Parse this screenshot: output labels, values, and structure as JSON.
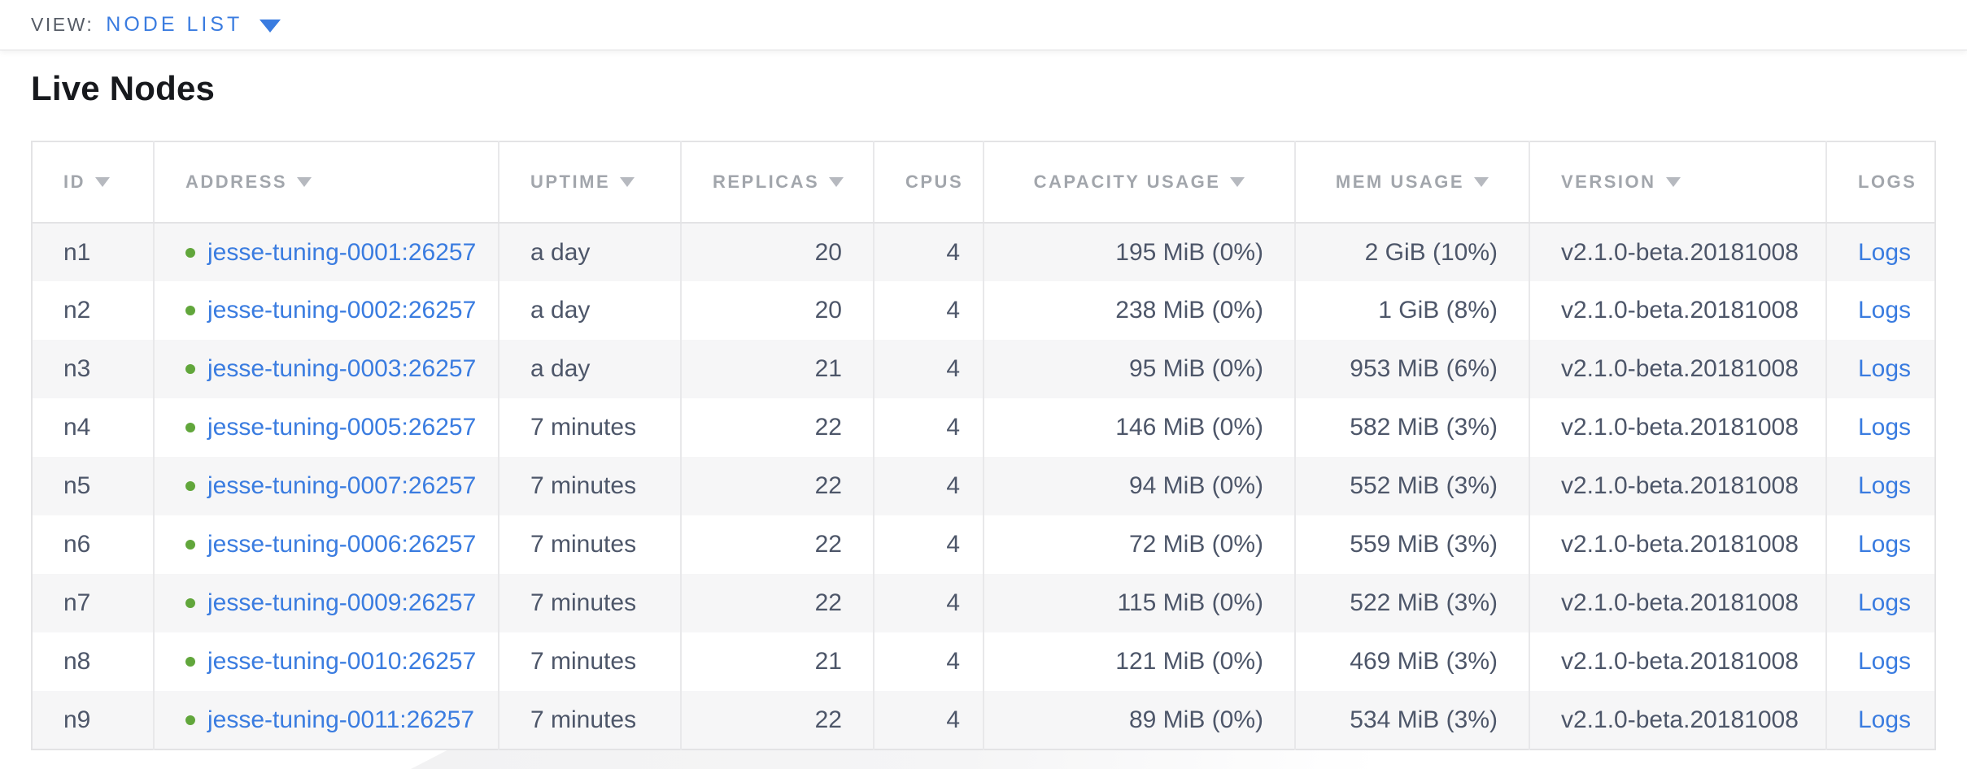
{
  "view_bar": {
    "label": "VIEW:",
    "selected": "NODE LIST"
  },
  "page": {
    "title": "Live Nodes"
  },
  "table": {
    "columns": [
      {
        "field": "id",
        "label": "ID",
        "sortable": true,
        "header_align": "left",
        "cell_align": "left"
      },
      {
        "field": "address",
        "label": "ADDRESS",
        "sortable": true,
        "header_align": "left",
        "cell_align": "left"
      },
      {
        "field": "uptime",
        "label": "UPTIME",
        "sortable": true,
        "header_align": "left",
        "cell_align": "left"
      },
      {
        "field": "replicas",
        "label": "REPLICAS",
        "sortable": true,
        "header_align": "center",
        "cell_align": "right"
      },
      {
        "field": "cpus",
        "label": "CPUS",
        "sortable": false,
        "header_align": "center",
        "cell_align": "right"
      },
      {
        "field": "capacity_usage",
        "label": "CAPACITY USAGE",
        "sortable": true,
        "header_align": "center",
        "cell_align": "right"
      },
      {
        "field": "mem_usage",
        "label": "MEM USAGE",
        "sortable": true,
        "header_align": "center",
        "cell_align": "right"
      },
      {
        "field": "version",
        "label": "VERSION",
        "sortable": true,
        "header_align": "left",
        "cell_align": "left"
      },
      {
        "field": "logs",
        "label": "LOGS",
        "sortable": false,
        "header_align": "center",
        "cell_align": "center"
      }
    ],
    "rows": [
      {
        "id": "n1",
        "status": "healthy",
        "address": "jesse-tuning-0001:26257",
        "uptime": "a day",
        "replicas": "20",
        "cpus": "4",
        "capacity_usage": "195 MiB (0%)",
        "mem_usage": "2 GiB (10%)",
        "version": "v2.1.0-beta.20181008",
        "logs": "Logs"
      },
      {
        "id": "n2",
        "status": "healthy",
        "address": "jesse-tuning-0002:26257",
        "uptime": "a day",
        "replicas": "20",
        "cpus": "4",
        "capacity_usage": "238 MiB (0%)",
        "mem_usage": "1 GiB (8%)",
        "version": "v2.1.0-beta.20181008",
        "logs": "Logs"
      },
      {
        "id": "n3",
        "status": "healthy",
        "address": "jesse-tuning-0003:26257",
        "uptime": "a day",
        "replicas": "21",
        "cpus": "4",
        "capacity_usage": "95 MiB (0%)",
        "mem_usage": "953 MiB (6%)",
        "version": "v2.1.0-beta.20181008",
        "logs": "Logs"
      },
      {
        "id": "n4",
        "status": "healthy",
        "address": "jesse-tuning-0005:26257",
        "uptime": "7 minutes",
        "replicas": "22",
        "cpus": "4",
        "capacity_usage": "146 MiB (0%)",
        "mem_usage": "582 MiB (3%)",
        "version": "v2.1.0-beta.20181008",
        "logs": "Logs"
      },
      {
        "id": "n5",
        "status": "healthy",
        "address": "jesse-tuning-0007:26257",
        "uptime": "7 minutes",
        "replicas": "22",
        "cpus": "4",
        "capacity_usage": "94 MiB (0%)",
        "mem_usage": "552 MiB (3%)",
        "version": "v2.1.0-beta.20181008",
        "logs": "Logs"
      },
      {
        "id": "n6",
        "status": "healthy",
        "address": "jesse-tuning-0006:26257",
        "uptime": "7 minutes",
        "replicas": "22",
        "cpus": "4",
        "capacity_usage": "72 MiB (0%)",
        "mem_usage": "559 MiB (3%)",
        "version": "v2.1.0-beta.20181008",
        "logs": "Logs"
      },
      {
        "id": "n7",
        "status": "healthy",
        "address": "jesse-tuning-0009:26257",
        "uptime": "7 minutes",
        "replicas": "22",
        "cpus": "4",
        "capacity_usage": "115 MiB (0%)",
        "mem_usage": "522 MiB (3%)",
        "version": "v2.1.0-beta.20181008",
        "logs": "Logs"
      },
      {
        "id": "n8",
        "status": "healthy",
        "address": "jesse-tuning-0010:26257",
        "uptime": "7 minutes",
        "replicas": "21",
        "cpus": "4",
        "capacity_usage": "121 MiB (0%)",
        "mem_usage": "469 MiB (3%)",
        "version": "v2.1.0-beta.20181008",
        "logs": "Logs"
      },
      {
        "id": "n9",
        "status": "healthy",
        "address": "jesse-tuning-0011:26257",
        "uptime": "7 minutes",
        "replicas": "22",
        "cpus": "4",
        "capacity_usage": "89 MiB (0%)",
        "mem_usage": "534 MiB (3%)",
        "version": "v2.1.0-beta.20181008",
        "logs": "Logs"
      }
    ]
  },
  "colors": {
    "accent_blue": "#3a7ce0",
    "healthy_green": "#61a63b",
    "header_gray": "#a2a6ac",
    "cell_text": "#4d5669",
    "row_stripe": "#f6f6f7",
    "table_border": "#e8e8ea"
  }
}
